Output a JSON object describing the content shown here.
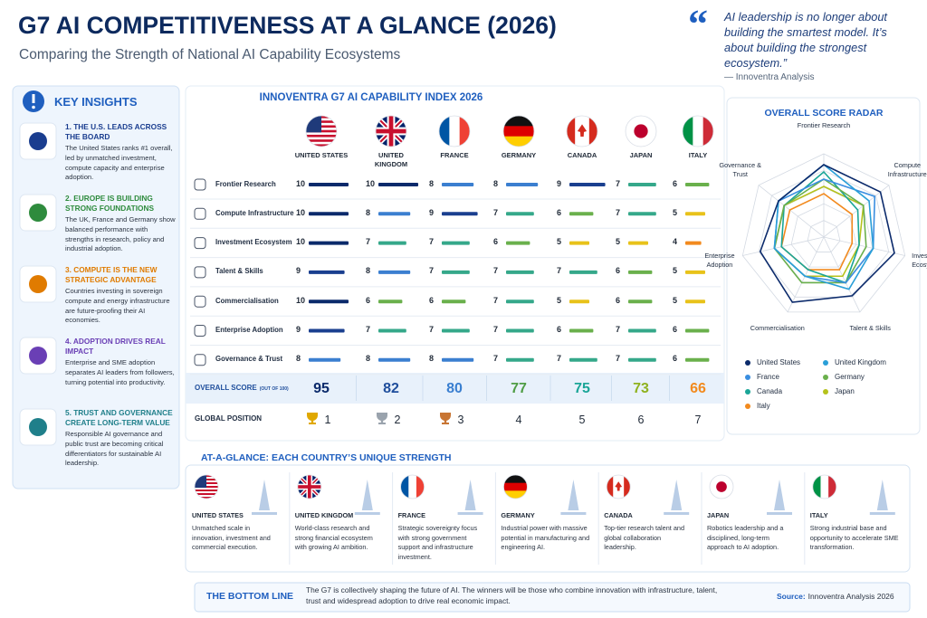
{
  "header": {
    "title": "G7 AI COMPETITIVENESS AT A GLANCE (2026)",
    "subtitle": "Comparing the Strength of National AI Capability Ecosystems"
  },
  "quote": {
    "mark": "“",
    "text": "AI leadership is no longer about building the smartest model. It’s about building the strongest ecosystem.”",
    "source": "— Innoventra Analysis"
  },
  "insights": {
    "heading": "KEY INSIGHTS",
    "items": [
      {
        "title": "1. THE U.S. LEADS ACROSS THE BOARD",
        "text": "The United States ranks #1 overall, led by unmatched investment, compute capacity and enterprise adoption.",
        "color": "#1a3d8f"
      },
      {
        "title": "2. EUROPE IS BUILDING STRONG FOUNDATIONS",
        "text": "The UK, France and Germany show balanced performance with strengths in research, policy and industrial adoption.",
        "color": "#2e8b3d"
      },
      {
        "title": "3. COMPUTE IS THE NEW STRATEGIC ADVANTAGE",
        "text": "Countries investing in sovereign compute and energy infrastructure are future-proofing their AI economies.",
        "color": "#e07b00"
      },
      {
        "title": "4. ADOPTION DRIVES REAL IMPACT",
        "text": "Enterprise and SME adoption separates AI leaders from followers, turning potential into productivity.",
        "color": "#6a3fb5"
      },
      {
        "title": "5. TRUST AND GOVERNANCE CREATE LONG-TERM VALUE",
        "text": "Responsible AI governance and public trust are becoming critical differentiators for sustainable AI leadership.",
        "color": "#1f7f8a"
      }
    ]
  },
  "index": {
    "title": "INNOVENTRA G7 AI CAPABILITY INDEX 2026",
    "score_range": [
      0,
      10
    ],
    "bar_colors": {
      "4": "#f28a1e",
      "5": "#e8c21a",
      "6": "#6ab04c",
      "7": "#35a88a",
      "8": "#3b7fd0",
      "9": "#1a3f8f",
      "10": "#0b2a6b"
    },
    "countries": [
      {
        "name": "United States",
        "color": "#0b2a6b"
      },
      {
        "name": "United Kingdom",
        "color": "#1f4e9c"
      },
      {
        "name": "France",
        "color": "#3a7fd0"
      },
      {
        "name": "Germany",
        "color": "#4f9d45"
      },
      {
        "name": "Canada",
        "color": "#1aa597"
      },
      {
        "name": "Japan",
        "color": "#8fb21f"
      },
      {
        "name": "Italy",
        "color": "#f28a1e"
      }
    ],
    "metrics": [
      {
        "name": "Frontier Research",
        "scores": [
          10,
          10,
          8,
          8,
          9,
          7,
          6
        ]
      },
      {
        "name": "Compute Infrastructure",
        "scores": [
          10,
          8,
          9,
          7,
          6,
          7,
          5
        ]
      },
      {
        "name": "Investment Ecosystem",
        "scores": [
          10,
          7,
          7,
          6,
          5,
          5,
          4
        ]
      },
      {
        "name": "Talent & Skills",
        "scores": [
          9,
          8,
          7,
          7,
          7,
          6,
          5
        ]
      },
      {
        "name": "Commercialisation",
        "scores": [
          10,
          6,
          6,
          7,
          5,
          6,
          5
        ]
      },
      {
        "name": "Enterprise Adoption",
        "scores": [
          9,
          7,
          7,
          7,
          6,
          7,
          6
        ]
      },
      {
        "name": "Governance & Trust",
        "scores": [
          8,
          8,
          8,
          7,
          7,
          7,
          6
        ]
      }
    ],
    "overall_label": "OVERALL SCORE",
    "overall_note": "(OUT OF 100)",
    "overall": [
      95,
      82,
      80,
      77,
      75,
      73,
      66
    ],
    "position_label": "GLOBAL POSITION",
    "positions": [
      1,
      2,
      3,
      4,
      5,
      6,
      7
    ],
    "medal_colors": [
      "#e0a800",
      "#9aa3ad",
      "#c87533"
    ]
  },
  "radar": {
    "title": "OVERALL SCORE RADAR",
    "legend_colors": [
      "#0b2a6b",
      "#2a9fd8",
      "#3a8ee0",
      "#6ab04c",
      "#1aa597",
      "#b5c21b",
      "#f28a1e"
    ]
  },
  "strengths": {
    "heading": "AT-A-GLANCE: EACH COUNTRY’S UNIQUE STRENGTH",
    "items": [
      "Unmatched scale in innovation, investment and commercial execution.",
      "World-class research and strong financial ecosystem with growing AI ambition.",
      "Strategic sovereignty focus with strong government support and infrastructure investment.",
      "Industrial power with massive potential in manufacturing and engineering AI.",
      "Top-tier research talent and global collaboration leadership.",
      "Robotics leadership and a disciplined, long-term approach to AI adoption.",
      "Strong industrial base and opportunity to accelerate SME transformation."
    ]
  },
  "bottom_line": {
    "label": "THE BOTTOM LINE",
    "text": "The G7 is collectively shaping the future of AI. The winners will be those who combine innovation with infrastructure, talent, trust and widespread adoption to drive real economic impact.",
    "source_label": "Source:",
    "source": "Innoventra Analysis 2026"
  }
}
